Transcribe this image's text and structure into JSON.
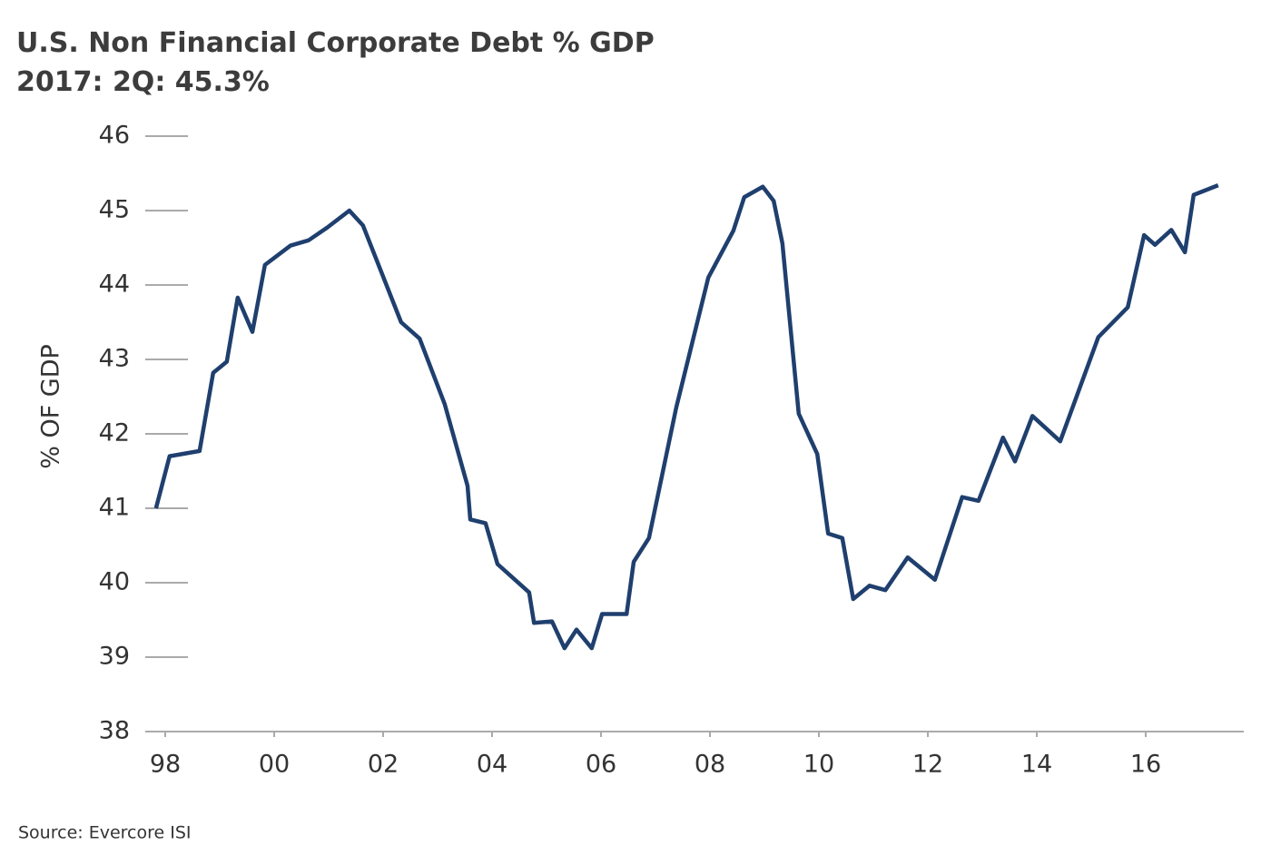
{
  "chart_data": {
    "type": "line",
    "title": "U.S. Non Financial Corporate Debt % GDP",
    "subtitle": "2017: 2Q: 45.3%",
    "y_label": "% OF GDP",
    "source": "Source: Evercore ISI",
    "x": [
      1997.83,
      1998.08,
      1998.63,
      1998.88,
      1999.13,
      1999.33,
      1999.6,
      1999.83,
      2000.3,
      2000.63,
      2000.97,
      2001.38,
      2001.63,
      2002.33,
      2002.67,
      2003.13,
      2003.55,
      2003.6,
      2003.88,
      2004.1,
      2004.68,
      2004.77,
      2005.1,
      2005.33,
      2005.55,
      2005.83,
      2006.02,
      2006.47,
      2006.6,
      2006.88,
      2007.38,
      2007.97,
      2008.43,
      2008.63,
      2008.97,
      2009.17,
      2009.33,
      2009.63,
      2009.97,
      2010.17,
      2010.43,
      2010.63,
      2010.93,
      2011.22,
      2011.63,
      2012.13,
      2012.63,
      2012.93,
      2013.38,
      2013.6,
      2013.92,
      2014.43,
      2015.13,
      2015.67,
      2015.97,
      2016.17,
      2016.47,
      2016.72,
      2016.88,
      2017.33
    ],
    "series": [
      {
        "name": "U.S. Non Financial Corporate Debt % GDP",
        "color": "#1f3f6e",
        "values": [
          41.0,
          41.7,
          41.77,
          42.82,
          42.97,
          43.83,
          43.37,
          44.27,
          44.53,
          44.6,
          44.77,
          45.0,
          44.8,
          43.5,
          43.28,
          42.4,
          41.3,
          40.85,
          40.8,
          40.25,
          39.87,
          39.46,
          39.48,
          39.12,
          39.37,
          39.12,
          39.58,
          39.58,
          40.28,
          40.6,
          42.35,
          44.1,
          44.73,
          45.18,
          45.32,
          45.13,
          44.56,
          42.27,
          41.73,
          40.66,
          40.6,
          39.78,
          39.96,
          39.9,
          40.34,
          40.04,
          41.15,
          41.1,
          41.95,
          41.63,
          42.24,
          41.9,
          43.3,
          43.7,
          44.67,
          44.54,
          44.74,
          44.44,
          45.21,
          45.34
        ]
      }
    ],
    "xlim": [
      1997.633,
      2017.8
    ],
    "xticks": [
      {
        "value": 1998,
        "label": "98"
      },
      {
        "value": 2000,
        "label": "00"
      },
      {
        "value": 2002,
        "label": "02"
      },
      {
        "value": 2004,
        "label": "04"
      },
      {
        "value": 2006,
        "label": "06"
      },
      {
        "value": 2008,
        "label": "08"
      },
      {
        "value": 2010,
        "label": "10"
      },
      {
        "value": 2012,
        "label": "12"
      },
      {
        "value": 2014,
        "label": "14"
      },
      {
        "value": 2016,
        "label": "16"
      }
    ],
    "ylim": [
      38,
      46
    ],
    "yticks": [
      38,
      39,
      40,
      41,
      42,
      43,
      44,
      45,
      46
    ]
  }
}
